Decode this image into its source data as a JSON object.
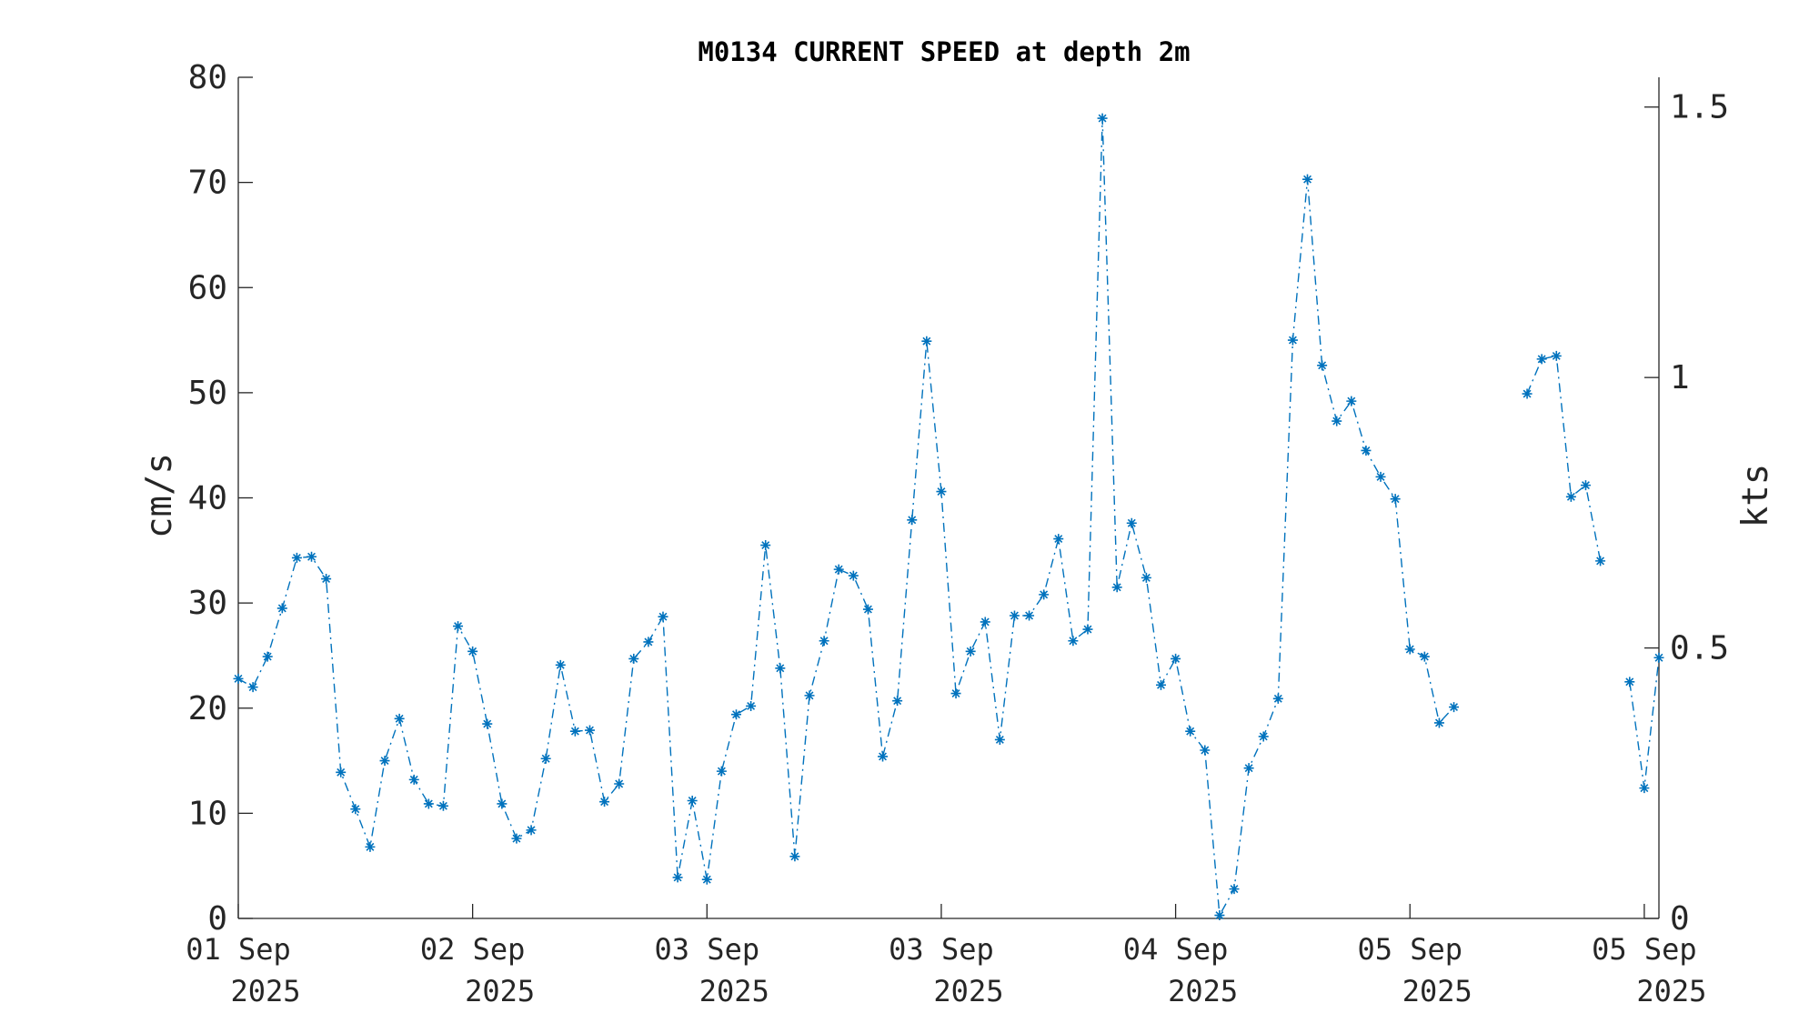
{
  "colors": {
    "series": "#0072bd",
    "axis": "#262626"
  },
  "chart_data": {
    "type": "line",
    "title": "M0134 CURRENT SPEED at depth 2m",
    "xlabel": "",
    "ylabel": "cm/s",
    "y2label": "kts",
    "ylim": [
      0,
      80
    ],
    "y2lim": [
      0,
      1.555
    ],
    "yticks": [
      0,
      10,
      20,
      30,
      40,
      50,
      60,
      70,
      80
    ],
    "y2ticks": [
      0,
      0.5,
      1,
      1.5
    ],
    "y2ticklabels": [
      "0",
      "0.5",
      "1",
      "1.5"
    ],
    "xticks": [
      {
        "i": 0,
        "line1": "01 Sep",
        "line2": "2025"
      },
      {
        "i": 16,
        "line1": "02 Sep",
        "line2": "2025"
      },
      {
        "i": 32,
        "line1": "03 Sep",
        "line2": "2025"
      },
      {
        "i": 48,
        "line1": "03 Sep",
        "line2": "2025"
      },
      {
        "i": 64,
        "line1": "04 Sep",
        "line2": "2025"
      },
      {
        "i": 80,
        "line1": "05 Sep",
        "line2": "2025"
      },
      {
        "i": 96,
        "line1": "05 Sep",
        "line2": "2025"
      }
    ],
    "grid": false,
    "legend": "none",
    "marker": "asterisk",
    "linestyle": "dash-dot",
    "series": [
      {
        "values": [
          22.8,
          22.0,
          24.9,
          29.5,
          34.3,
          34.4,
          32.3,
          13.9,
          10.4,
          6.8,
          15.0,
          19.0,
          13.2,
          10.9,
          10.7,
          27.8,
          25.4,
          18.5,
          10.9,
          7.6,
          8.4,
          15.2,
          24.1,
          17.8,
          17.9,
          11.1,
          12.8,
          24.7,
          26.3,
          28.7,
          3.9,
          11.2,
          3.7,
          14.0,
          19.4,
          20.2,
          35.5,
          23.8,
          5.9,
          21.2,
          26.4,
          33.2,
          32.6,
          29.4,
          15.4,
          20.7,
          37.9,
          54.9,
          40.6,
          21.4,
          25.4,
          28.2,
          17.0,
          28.8,
          28.8,
          30.8,
          36.1,
          26.4,
          27.5,
          76.1,
          31.5,
          37.6,
          32.4,
          22.2,
          24.7,
          17.8,
          16.0,
          0.3,
          2.8,
          14.3,
          17.3,
          20.9,
          55.0,
          70.3,
          52.6,
          47.3,
          49.2,
          44.5,
          42.0,
          39.9,
          25.6,
          24.9,
          18.6,
          20.1,
          null,
          null,
          null,
          null,
          49.9,
          53.2,
          53.5,
          40.1,
          41.2,
          34.0,
          null,
          22.5,
          12.4,
          24.8
        ]
      }
    ]
  }
}
